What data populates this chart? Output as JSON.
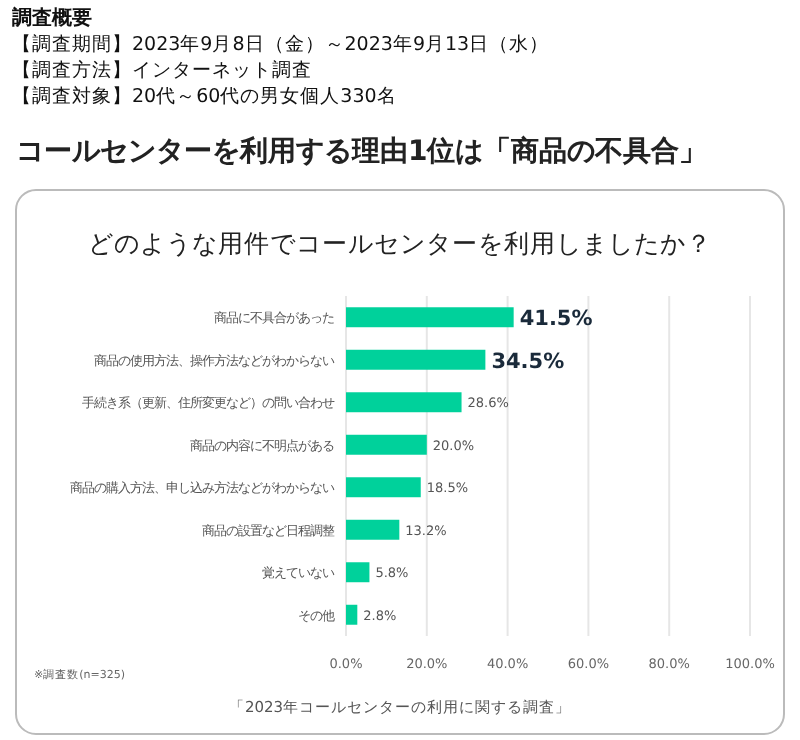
{
  "chart_data": {
    "type": "bar",
    "orientation": "horizontal",
    "title": "コールセンターを利用する理由1位は「商品の不具合」",
    "subtitle": "どのような用件でコールセンターを利用しましたか？",
    "annotations": [
      "調査概要",
      "【調査期間】2023年9月8日（金）～2023年9月13日（水）",
      "【調査方法】インターネット調査",
      "【調査対象】20代～60代の男女個人330名",
      "※調査数(n=325)",
      "「2023年コールセンターの利用に関する調査」"
    ],
    "categories": [
      "商品に不具合があった",
      "商品の使用方法、操作方法などがわからない",
      "手続き系（更新、住所変更など）の問い合わせ",
      "商品の内容に不明点がある",
      "商品の購入方法、申し込み方法などがわからない",
      "商品の設置など日程調整",
      "覚えていない",
      "その他"
    ],
    "values": [
      41.5,
      34.5,
      28.6,
      20.0,
      18.5,
      13.2,
      5.8,
      2.8
    ],
    "value_labels": [
      "41.5%",
      "34.5%",
      "28.6%",
      "20.0%",
      "18.5%",
      "13.2%",
      "5.8%",
      "2.8%"
    ],
    "color": "#00d19b",
    "xlim": [
      0,
      100
    ],
    "xticks": [
      {
        "value": 0,
        "label": "0.0%"
      },
      {
        "value": 20,
        "label": "20.0%"
      },
      {
        "value": 40,
        "label": "40.0%"
      },
      {
        "value": 60,
        "label": "60.0%"
      },
      {
        "value": 80,
        "label": "80.0%"
      },
      {
        "value": 100,
        "label": "100.0%"
      }
    ],
    "grid": "x"
  }
}
